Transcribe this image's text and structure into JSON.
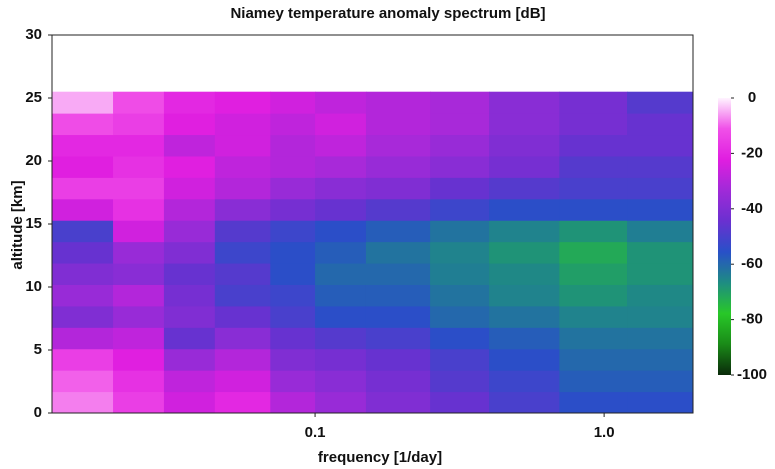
{
  "chart_data": {
    "type": "heatmap",
    "title": "Niamey temperature anomaly spectrum [dB]",
    "xlabel": "frequency [1/day]",
    "ylabel": "altitude [km]",
    "xscale": "log",
    "xlim": [
      0.0123,
      2.03
    ],
    "xticks": [
      0.1,
      {
        "value": 1,
        "label": "1.0"
      }
    ],
    "ylim": [
      0,
      30
    ],
    "yticks": [
      0,
      5,
      10,
      15,
      20,
      25,
      30
    ],
    "x_bins": [
      0.0123,
      0.02,
      0.03,
      0.045,
      0.07,
      0.1,
      0.15,
      0.25,
      0.4,
      0.7,
      1.2,
      2.03
    ],
    "y_bins": [
      0,
      1.7,
      3.4,
      5.1,
      6.8,
      8.5,
      10.2,
      11.9,
      13.6,
      15.3,
      17,
      18.7,
      20.4,
      22.1,
      23.8,
      25.5
    ],
    "values": [
      [
        -8,
        -15,
        -25,
        -20,
        -30,
        -35,
        -40,
        -45,
        -50,
        -55,
        -55
      ],
      [
        -10,
        -18,
        -28,
        -25,
        -35,
        -38,
        -42,
        -48,
        -52,
        -58,
        -58
      ],
      [
        -15,
        -22,
        -35,
        -30,
        -40,
        -42,
        -45,
        -50,
        -55,
        -60,
        -60
      ],
      [
        -30,
        -28,
        -45,
        -38,
        -45,
        -48,
        -50,
        -55,
        -58,
        -62,
        -62
      ],
      [
        -40,
        -35,
        -40,
        -45,
        -50,
        -55,
        -55,
        -60,
        -62,
        -65,
        -65
      ],
      [
        -35,
        -30,
        -42,
        -50,
        -52,
        -58,
        -58,
        -62,
        -65,
        -68,
        -66
      ],
      [
        -40,
        -38,
        -45,
        -48,
        -55,
        -60,
        -60,
        -64,
        -66,
        -70,
        -68
      ],
      [
        -45,
        -35,
        -40,
        -52,
        -55,
        -58,
        -62,
        -65,
        -68,
        -72,
        -68
      ],
      [
        -50,
        -25,
        -35,
        -48,
        -52,
        -55,
        -58,
        -62,
        -65,
        -68,
        -64
      ],
      [
        -25,
        -18,
        -30,
        -38,
        -42,
        -45,
        -48,
        -52,
        -55,
        -55,
        -55
      ],
      [
        -15,
        -15,
        -25,
        -30,
        -35,
        -38,
        -40,
        -45,
        -48,
        -50,
        -50
      ],
      [
        -22,
        -18,
        -22,
        -28,
        -30,
        -32,
        -35,
        -38,
        -42,
        -48,
        -48
      ],
      [
        -20,
        -20,
        -28,
        -25,
        -30,
        -28,
        -32,
        -35,
        -40,
        -45,
        -45
      ],
      [
        -12,
        -15,
        -22,
        -25,
        -28,
        -25,
        -30,
        -32,
        -38,
        -42,
        -45
      ],
      [
        -5,
        -12,
        -20,
        -22,
        -25,
        -28,
        -30,
        -32,
        -38,
        -42,
        -48
      ]
    ],
    "clim": [
      -100,
      0
    ],
    "cticks": [
      0,
      -20,
      -40,
      -60,
      -80,
      -100
    ],
    "colormap": [
      "#0a2a0a",
      "#1a8a18",
      "#28c828",
      "#1e8c82",
      "#2850c8",
      "#6a30d0",
      "#a02ad8",
      "#e01ee0",
      "#f050e8",
      "#fff4ff"
    ]
  }
}
